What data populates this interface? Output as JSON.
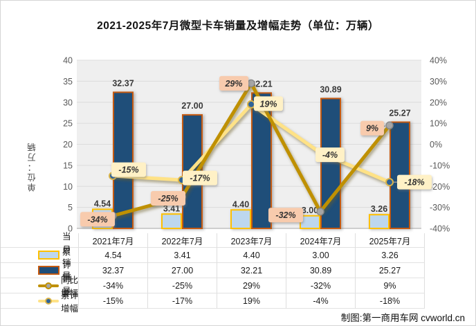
{
  "title": "2021-2025年7月微型卡车销量及增幅走势（单位：万辆）",
  "y_axis_title": "单位：万辆",
  "footer": "制图:第一商用车网 cvworld.cn",
  "chart_data": {
    "type": "combo-bar-line",
    "title": "2021-2025年7月微型卡车销量及增幅走势（单位：万辆）",
    "categories": [
      "2021年7月",
      "2022年7月",
      "2023年7月",
      "2024年7月",
      "2025年7月"
    ],
    "bar_series": [
      {
        "name": "当月销量",
        "values": [
          4.54,
          3.41,
          4.4,
          3.0,
          3.26
        ],
        "labels": [
          "4.54",
          "3.41",
          "4.40",
          "3.00",
          "3.26"
        ]
      },
      {
        "name": "累计销量",
        "values": [
          32.37,
          27.0,
          32.21,
          30.89,
          25.27
        ],
        "labels": [
          "32.37",
          "27.00",
          "32.21",
          "30.89",
          "25.27"
        ]
      }
    ],
    "line_series": [
      {
        "name": "同比增幅",
        "values": [
          -34,
          -25,
          29,
          -32,
          9
        ],
        "labels": [
          "-34%",
          "-25%",
          "29%",
          "-32%",
          "9%"
        ]
      },
      {
        "name": "累计增幅",
        "values": [
          -15,
          -17,
          19,
          -4,
          -18
        ],
        "labels": [
          "-15%",
          "-17%",
          "19%",
          "-4%",
          "-18%"
        ]
      }
    ],
    "left_axis": {
      "title": "单位：万辆",
      "min": 0,
      "max": 40,
      "step": 5,
      "ticks": [
        "0",
        "5",
        "10",
        "15",
        "20",
        "25",
        "30",
        "35",
        "40"
      ]
    },
    "right_axis": {
      "min": -40,
      "max": 40,
      "step": 10,
      "ticks": [
        "-40%",
        "-30%",
        "-20%",
        "-10%",
        "0%",
        "10%",
        "20%",
        "30%",
        "40%"
      ]
    },
    "grid": true,
    "legend_position": "bottom-table"
  },
  "table": {
    "col_headers": [
      "2021年7月",
      "2022年7月",
      "2023年7月",
      "2024年7月",
      "2025年7月"
    ],
    "rows": [
      {
        "label": "当月销量",
        "swatch": "bar-monthly",
        "values": [
          "4.54",
          "3.41",
          "4.40",
          "3.00",
          "3.26"
        ]
      },
      {
        "label": "累计销量",
        "swatch": "bar-cumulative",
        "values": [
          "32.37",
          "27.00",
          "32.21",
          "30.89",
          "25.27"
        ]
      },
      {
        "label": "同比增幅",
        "swatch": "line-yoy",
        "values": [
          "-34%",
          "-25%",
          "29%",
          "-32%",
          "9%"
        ]
      },
      {
        "label": "累计增幅",
        "swatch": "line-cumulative",
        "values": [
          "-15%",
          "-17%",
          "19%",
          "-4%",
          "-18%"
        ]
      }
    ]
  },
  "colors": {
    "bar_monthly_fill": "#BDD7EE",
    "bar_monthly_border": "#FFC000",
    "bar_cumulative_fill": "#1F4E79",
    "bar_cumulative_border": "#C55A11",
    "line_yoy": "#BF9000",
    "marker_yoy_fill": "#A6A6A6",
    "marker_yoy_ring": "#8A8A8A",
    "line_cumulative": "#FFE286",
    "marker_cumulative_fill": "#2E6399",
    "marker_cumulative_ring": "#D9B44A",
    "label_yoy_bg": "#F8CBAD",
    "label_cumulative_bg": "#FFF1C6",
    "plot_bg": "#EFEFEF",
    "gridline": "#DCDCDC",
    "axis_line": "#A6A6A6",
    "tick_text": "#595959",
    "label_text": "#3A3A3A"
  }
}
